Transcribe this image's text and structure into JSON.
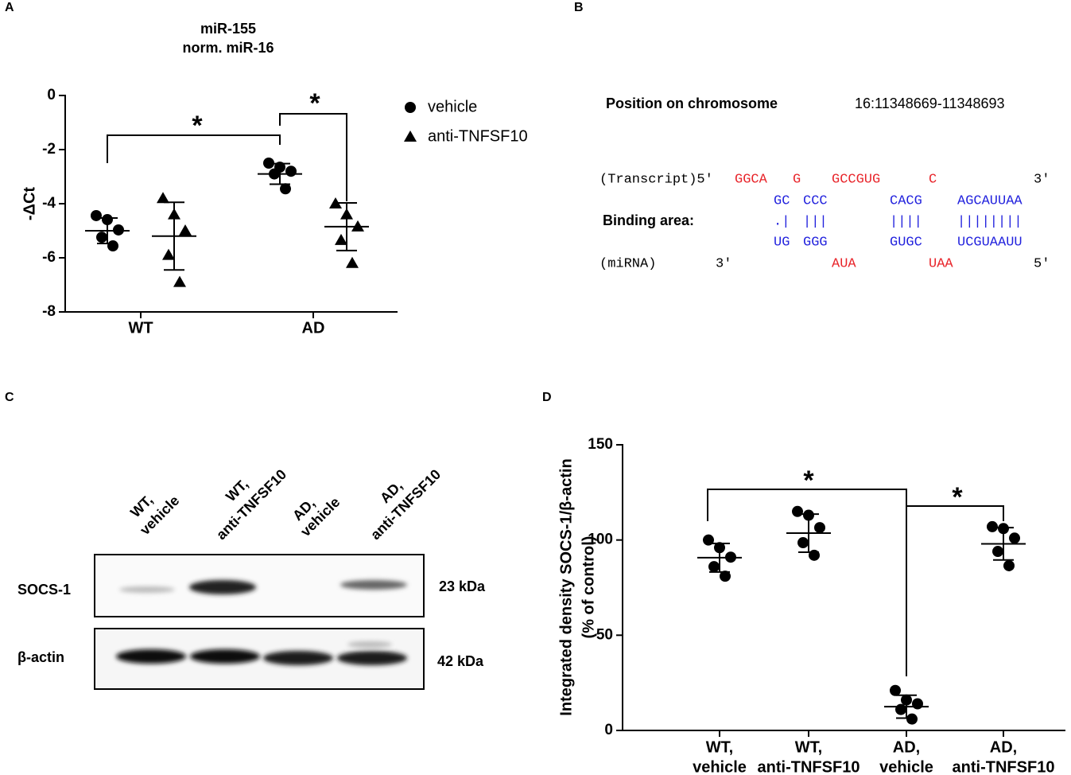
{
  "panels": [
    "A",
    "B",
    "C",
    "D"
  ],
  "chart_data": [
    {
      "type": "dotplot",
      "title": "miR-155",
      "subtitle": "norm. miR-16",
      "ylabel": "-ΔCt",
      "categories": [
        "WT",
        "AD"
      ],
      "ylim": [
        -8,
        0
      ],
      "yticks": [
        0,
        -2,
        -4,
        -6,
        -8
      ],
      "annotations": [
        "*",
        "*"
      ],
      "legend": "right",
      "series": [
        {
          "name": "vehicle",
          "marker": "circle",
          "color": "#000000",
          "values": [
            [
              -4.44,
              -4.59,
              -4.97,
              -5.24,
              -5.56
            ],
            [
              -2.5,
              -2.65,
              -2.8,
              -2.9,
              -3.45
            ]
          ],
          "mean": [
            -5.0,
            -2.9
          ],
          "sd": [
            0.47,
            0.38
          ]
        },
        {
          "name": "anti-TNFSF10",
          "marker": "triangle",
          "color": "#000000",
          "values": [
            [
              -3.8,
              -4.4,
              -5.0,
              -5.9,
              -6.9
            ],
            [
              -4.0,
              -4.4,
              -4.85,
              -5.35,
              -6.2
            ]
          ],
          "mean": [
            -5.2,
            -4.85
          ],
          "sd": [
            1.25,
            0.88
          ]
        }
      ]
    },
    {
      "type": "dotplot",
      "ylabel": "Integrated density SOCS-1/β-actin",
      "ylabel_note": "(% of control)",
      "categories": [
        [
          "WT,",
          "vehicle"
        ],
        [
          "WT,",
          "anti-TNFSF10"
        ],
        [
          "AD,",
          "vehicle"
        ],
        [
          "AD,",
          "anti-TNFSF10"
        ]
      ],
      "ylim": [
        0,
        150
      ],
      "yticks": [
        0,
        50,
        100,
        150
      ],
      "annotations": [
        "*",
        "*"
      ],
      "series": [
        {
          "marker": "circle",
          "color": "#000000",
          "values": [
            [
              100,
              96,
              91,
              86,
              81
            ],
            [
              115,
              113,
              106.5,
              98.6,
              92
            ],
            [
              21,
              16,
              14,
              11,
              6
            ],
            [
              107,
              106,
              101,
              94,
              86.5
            ]
          ],
          "mean": [
            90.7,
            103.6,
            12.5,
            98
          ],
          "sd": [
            7.5,
            10,
            6,
            8.5
          ]
        }
      ]
    }
  ],
  "binding": {
    "position_label": "Position on chromosome",
    "position": "16:11348669-11348693",
    "transcript": [
      "(Transcript)5'",
      "GGCA",
      "G",
      "GCCGUG",
      "C",
      "3'"
    ],
    "target": [
      "GC",
      "CCC",
      "CACG",
      "AGCAUUAA"
    ],
    "label": "Binding area:",
    "pairs": [
      ".|",
      "|||",
      "||||",
      "||||||||"
    ],
    "seed": [
      "UG",
      "GGG",
      "GUGC",
      "UCGUAAUU"
    ],
    "mirna": [
      "(miRNA)",
      "3'",
      "AUA",
      "UAA",
      "5'"
    ]
  },
  "blot": {
    "lanes": [
      [
        "WT,",
        "vehicle"
      ],
      [
        "WT,",
        "anti-TNFSF10"
      ],
      [
        "AD,",
        "vehicle"
      ],
      [
        "AD,",
        "anti-TNFSF10"
      ]
    ],
    "rows": [
      {
        "name": "SOCS-1",
        "size": "23 kDa"
      },
      {
        "name": "β-actin",
        "size": "42 kDa"
      }
    ]
  }
}
